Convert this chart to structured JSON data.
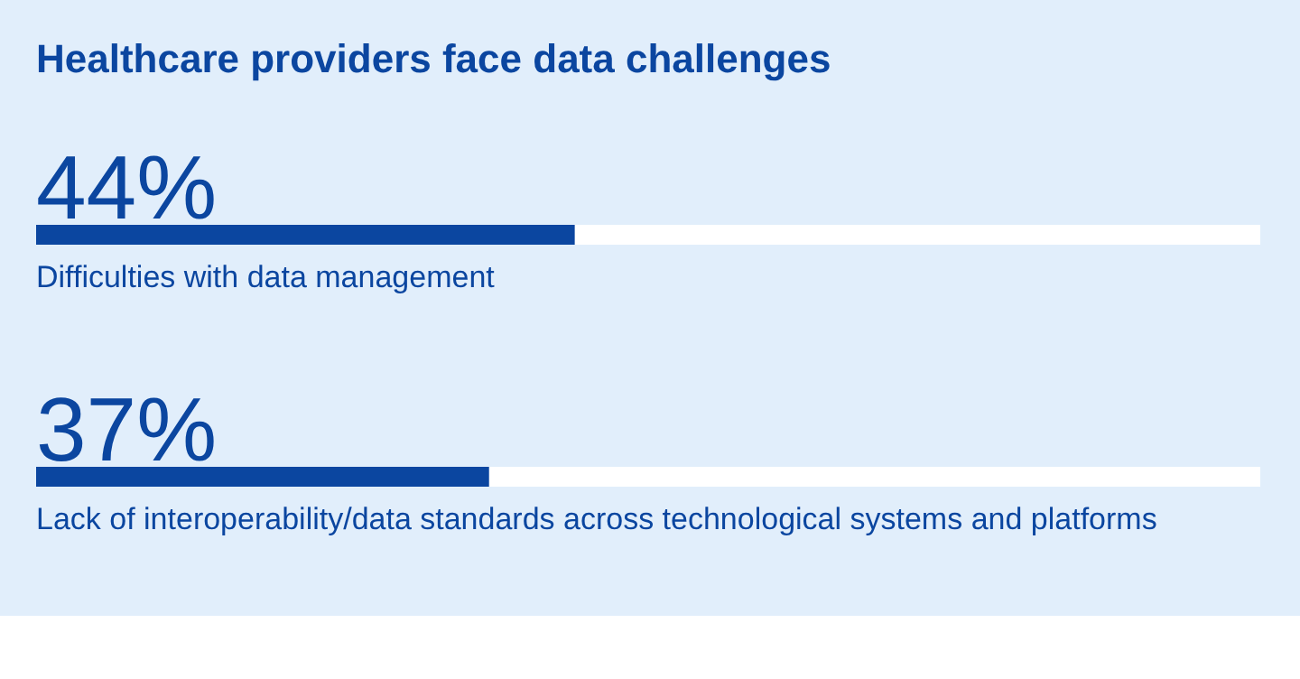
{
  "chart_data": {
    "type": "bar",
    "orientation": "horizontal",
    "title": "Healthcare providers face data challenges",
    "categories": [
      "Difficulties with data management",
      "Lack of interoperability/data standards across technological systems and platforms"
    ],
    "values": [
      44,
      37
    ],
    "value_labels": [
      "44%",
      "37%"
    ],
    "color": "#0b46a0",
    "xlim": [
      0,
      100
    ],
    "tick_labels": false,
    "grid": false
  }
}
